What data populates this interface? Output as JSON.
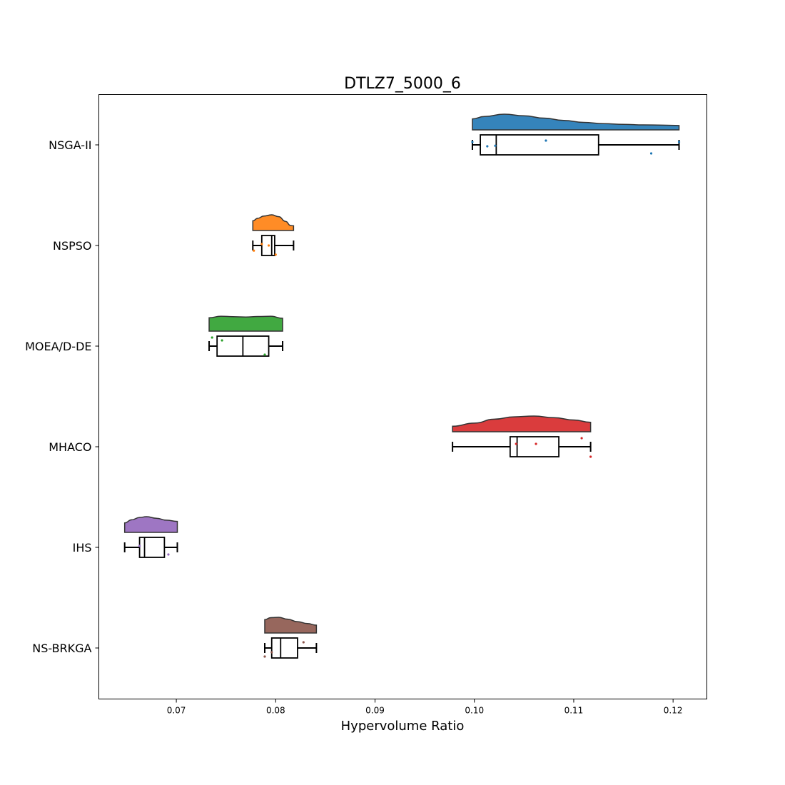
{
  "chart_data": {
    "type": "raincloud",
    "title": "DTLZ7_5000_6",
    "xlabel": "Hypervolume Ratio",
    "ylabel": "",
    "xlim": [
      0.0622,
      0.1234
    ],
    "xticks": [
      0.07,
      0.08,
      0.09,
      0.1,
      0.11,
      0.12
    ],
    "xtick_labels": [
      "0.07",
      "0.08",
      "0.09",
      "0.10",
      "0.11",
      "0.12"
    ],
    "grid": false,
    "series": [
      {
        "name": "NSGA-II",
        "color": "#1f77b4",
        "box": {
          "min": 0.0998,
          "q1": 0.1006,
          "median": 0.1022,
          "q3": 0.1125,
          "max": 0.1206
        },
        "density": [
          [
            0.0998,
            0.7
          ],
          [
            0.101,
            0.85
          ],
          [
            0.103,
            1.0
          ],
          [
            0.105,
            0.9
          ],
          [
            0.107,
            0.75
          ],
          [
            0.109,
            0.6
          ],
          [
            0.111,
            0.48
          ],
          [
            0.113,
            0.4
          ],
          [
            0.115,
            0.35
          ],
          [
            0.117,
            0.32
          ],
          [
            0.119,
            0.3
          ],
          [
            0.1206,
            0.28
          ]
        ],
        "points": [
          [
            0.0998,
            -0.1
          ],
          [
            0.1013,
            0.05
          ],
          [
            0.1021,
            0.03
          ],
          [
            0.1072,
            -0.15
          ],
          [
            0.1178,
            0.3
          ],
          [
            0.1206,
            -0.1
          ]
        ]
      },
      {
        "name": "NSPSO",
        "color": "#ff7f0e",
        "box": {
          "min": 0.0777,
          "q1": 0.0786,
          "median": 0.0796,
          "q3": 0.0799,
          "max": 0.0818
        },
        "density": [
          [
            0.0777,
            0.62
          ],
          [
            0.0782,
            0.78
          ],
          [
            0.0788,
            0.92
          ],
          [
            0.0796,
            1.0
          ],
          [
            0.0803,
            0.88
          ],
          [
            0.081,
            0.58
          ],
          [
            0.0815,
            0.32
          ],
          [
            0.0818,
            0.3
          ]
        ],
        "points": [
          [
            0.0778,
            0.18
          ],
          [
            0.0786,
            -0.05
          ],
          [
            0.0793,
            0.0
          ],
          [
            0.08,
            0.32
          ]
        ]
      },
      {
        "name": "MOEA/D-DE",
        "color": "#2ca02c",
        "box": {
          "min": 0.0733,
          "q1": 0.0741,
          "median": 0.0767,
          "q3": 0.0793,
          "max": 0.0807
        },
        "density": [
          [
            0.0733,
            0.85
          ],
          [
            0.0745,
            0.95
          ],
          [
            0.0757,
            0.92
          ],
          [
            0.077,
            0.9
          ],
          [
            0.0782,
            0.93
          ],
          [
            0.0795,
            0.95
          ],
          [
            0.0807,
            0.82
          ]
        ],
        "points": [
          [
            0.0736,
            -0.3
          ],
          [
            0.0746,
            -0.2
          ],
          [
            0.0789,
            0.3
          ]
        ]
      },
      {
        "name": "MHACO",
        "color": "#d62728",
        "box": {
          "min": 0.0978,
          "q1": 0.1036,
          "median": 0.1043,
          "q3": 0.1085,
          "max": 0.1117
        },
        "density": [
          [
            0.0978,
            0.35
          ],
          [
            0.1,
            0.55
          ],
          [
            0.102,
            0.8
          ],
          [
            0.104,
            0.95
          ],
          [
            0.106,
            1.0
          ],
          [
            0.108,
            0.9
          ],
          [
            0.11,
            0.75
          ],
          [
            0.1117,
            0.6
          ]
        ],
        "points": [
          [
            0.1042,
            -0.1
          ],
          [
            0.1062,
            -0.1
          ],
          [
            0.1108,
            -0.3
          ],
          [
            0.1117,
            0.35
          ]
        ]
      },
      {
        "name": "IHS",
        "color": "#9467bd",
        "box": {
          "min": 0.0648,
          "q1": 0.0663,
          "median": 0.0668,
          "q3": 0.0688,
          "max": 0.0701
        },
        "density": [
          [
            0.0648,
            0.6
          ],
          [
            0.0655,
            0.8
          ],
          [
            0.0663,
            0.95
          ],
          [
            0.067,
            1.0
          ],
          [
            0.068,
            0.9
          ],
          [
            0.069,
            0.78
          ],
          [
            0.0701,
            0.7
          ]
        ],
        "points": [
          [
            0.0663,
            -0.05
          ],
          [
            0.0692,
            0.25
          ]
        ]
      },
      {
        "name": "NS-BRKGA",
        "color": "#8c564b",
        "box": {
          "min": 0.0789,
          "q1": 0.0796,
          "median": 0.0805,
          "q3": 0.0822,
          "max": 0.0841
        },
        "density": [
          [
            0.0789,
            0.85
          ],
          [
            0.0795,
            0.98
          ],
          [
            0.0803,
            1.0
          ],
          [
            0.0812,
            0.88
          ],
          [
            0.0822,
            0.72
          ],
          [
            0.0832,
            0.6
          ],
          [
            0.0841,
            0.5
          ]
        ],
        "points": [
          [
            0.0789,
            0.3
          ],
          [
            0.0796,
            0.15
          ],
          [
            0.0828,
            -0.2
          ]
        ]
      }
    ]
  }
}
